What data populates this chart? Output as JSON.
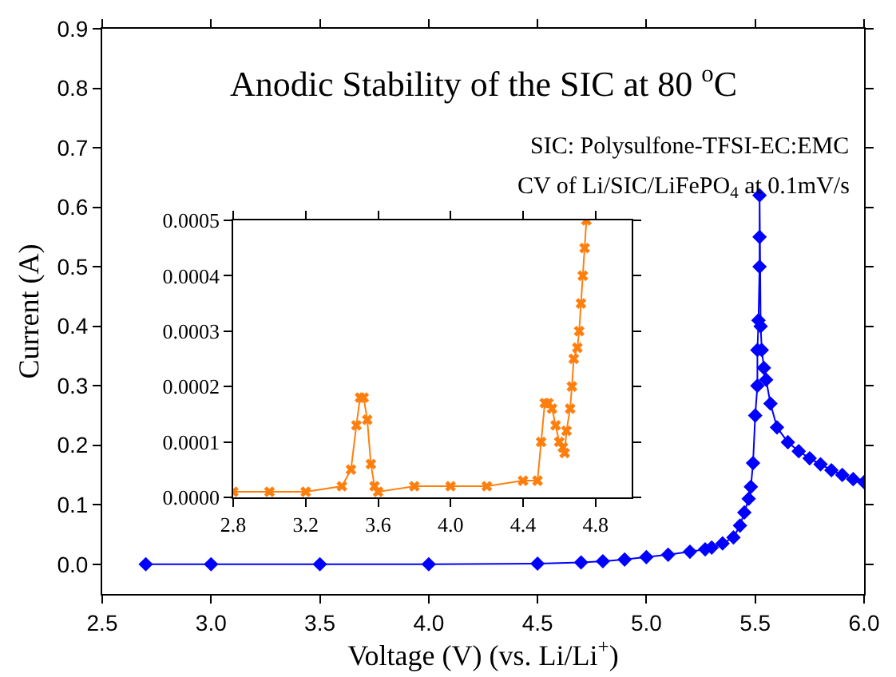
{
  "chart_data": [
    {
      "type": "line",
      "title": "Anodic Stability of the SIC at 80 $^{o}$C",
      "xlabel": "Voltage (V) (vs. Li/Li$^{+}$)",
      "ylabel": "Current (A)",
      "annotations": [
        "SIC: Polysulfone-TFSI-EC:EMC",
        "CV of Li/SIC/LiFePO$_{4}$ at 0.1mV/s"
      ],
      "x": [
        2.7,
        3.0,
        3.5,
        4.0,
        4.5,
        4.7,
        4.8,
        4.9,
        5.0,
        5.1,
        5.2,
        5.27,
        5.3,
        5.35,
        5.4,
        5.43,
        5.45,
        5.47,
        5.48,
        5.49,
        5.5,
        5.51,
        5.51,
        5.515,
        5.52,
        5.52,
        5.52,
        5.525,
        5.53,
        5.54,
        5.55,
        5.57,
        5.6,
        5.65,
        5.7,
        5.75,
        5.8,
        5.85,
        5.9,
        5.95,
        6.0
      ],
      "series": [
        {
          "color": "#0000ff",
          "values": [
            0.0,
            0.0,
            0.0,
            0.0,
            0.001,
            0.003,
            0.005,
            0.008,
            0.012,
            0.016,
            0.021,
            0.025,
            0.028,
            0.035,
            0.045,
            0.065,
            0.087,
            0.11,
            0.13,
            0.17,
            0.25,
            0.3,
            0.36,
            0.41,
            0.5,
            0.55,
            0.62,
            0.4,
            0.36,
            0.33,
            0.31,
            0.27,
            0.23,
            0.205,
            0.19,
            0.178,
            0.168,
            0.158,
            0.15,
            0.143,
            0.138
          ]
        }
      ],
      "xlim": [
        2.5,
        6.0
      ],
      "ylim": [
        -0.05,
        0.9
      ],
      "xticks": [
        {
          "value": 2.5,
          "label": "2.5"
        },
        {
          "value": 3,
          "label": "3.0"
        },
        {
          "value": 3.5,
          "label": "3.5"
        },
        {
          "value": 4,
          "label": "4.0"
        },
        {
          "value": 4.5,
          "label": "4.5"
        },
        {
          "value": 5,
          "label": "5.0"
        },
        {
          "value": 5.5,
          "label": "5.5"
        },
        {
          "value": 6,
          "label": "6.0"
        }
      ],
      "yticks": [
        {
          "value": 0,
          "label": "0.0"
        },
        {
          "value": 0.1,
          "label": "0.1"
        },
        {
          "value": 0.2,
          "label": "0.2"
        },
        {
          "value": 0.3,
          "label": "0.3"
        },
        {
          "value": 0.4,
          "label": "0.4"
        },
        {
          "value": 0.5,
          "label": "0.5"
        },
        {
          "value": 0.6,
          "label": "0.6"
        },
        {
          "value": 0.7,
          "label": "0.7"
        },
        {
          "value": 0.8,
          "label": "0.8"
        },
        {
          "value": 0.9,
          "label": "0.9"
        }
      ],
      "marker": "diamond",
      "line_style": "solid"
    },
    {
      "type": "line",
      "x": [
        2.8,
        3.0,
        3.2,
        3.4,
        3.45,
        3.48,
        3.5,
        3.52,
        3.54,
        3.56,
        3.58,
        3.6,
        3.8,
        4.0,
        4.2,
        4.4,
        4.48,
        4.5,
        4.52,
        4.54,
        4.56,
        4.58,
        4.6,
        4.62,
        4.63,
        4.64,
        4.66,
        4.67,
        4.68,
        4.7,
        4.71,
        4.72,
        4.73,
        4.74,
        4.75
      ],
      "series": [
        {
          "color": "#ff7f0e",
          "values": [
            1e-05,
            1e-05,
            1e-05,
            2e-05,
            5e-05,
            0.00013,
            0.00018,
            0.00018,
            0.00014,
            6e-05,
            2e-05,
            1e-05,
            2e-05,
            2e-05,
            2e-05,
            3e-05,
            3e-05,
            0.0001,
            0.00017,
            0.00017,
            0.00016,
            0.00013,
            0.0001,
            9e-05,
            8e-05,
            0.00012,
            0.00016,
            0.0002,
            0.00025,
            0.00027,
            0.0003,
            0.00035,
            0.0004,
            0.00045,
            0.0005
          ]
        }
      ],
      "xlim": [
        2.8,
        5.0
      ],
      "ylim": [
        0,
        0.0005
      ],
      "xticks": [
        {
          "value": 2.8,
          "label": "2.8"
        },
        {
          "value": 3.2,
          "label": "3.2"
        },
        {
          "value": 3.6,
          "label": "3.6"
        },
        {
          "value": 4,
          "label": "4.0"
        },
        {
          "value": 4.4,
          "label": "4.4"
        },
        {
          "value": 4.8,
          "label": "4.8"
        }
      ],
      "yticks": [
        {
          "value": 0,
          "label": "0.0000"
        },
        {
          "value": 0.0001,
          "label": "0.0001"
        },
        {
          "value": 0.0002,
          "label": "0.0002"
        },
        {
          "value": 0.0003,
          "label": "0.0003"
        },
        {
          "value": 0.0004,
          "label": "0.0004"
        },
        {
          "value": 0.0005,
          "label": "0.0005"
        }
      ],
      "marker": "cross",
      "line_style": "solid"
    }
  ]
}
